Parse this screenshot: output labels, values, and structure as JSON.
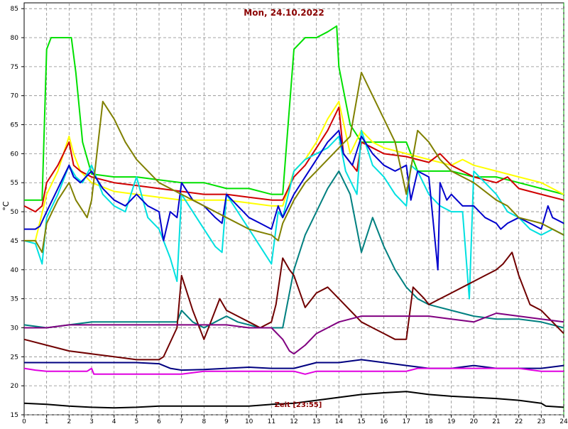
{
  "chart_data": {
    "type": "line",
    "title": "Mon, 24.10.2022",
    "xlabel": "Zeit [23:55]",
    "ylabel": "°C",
    "xlim": [
      0,
      24
    ],
    "ylim": [
      15,
      86
    ],
    "x_ticks": [
      0,
      1,
      2,
      3,
      4,
      5,
      6,
      7,
      8,
      9,
      10,
      11,
      12,
      13,
      14,
      15,
      16,
      17,
      18,
      19,
      20,
      21,
      22,
      23,
      24
    ],
    "y_ticks": [
      15,
      20,
      25,
      30,
      35,
      40,
      45,
      50,
      55,
      60,
      65,
      70,
      75,
      80,
      85
    ],
    "grid": true,
    "background": "#ffffff",
    "series": [
      {
        "color": "#00e000",
        "x": [
          0,
          0.5,
          0.8,
          1,
          1.2,
          1.7,
          2.1,
          2.3,
          2.6,
          3,
          4,
          5,
          6,
          7,
          8,
          9,
          10,
          11,
          11.5,
          12,
          12.5,
          13,
          13.5,
          13.9,
          14,
          14.5,
          15,
          16,
          17,
          17.5,
          18,
          19,
          20,
          21,
          22,
          23,
          24
        ],
        "y": [
          52,
          52,
          52,
          78,
          80,
          80,
          80,
          74,
          62,
          56.5,
          56,
          56,
          55.5,
          55,
          55,
          54,
          54,
          53,
          53,
          78,
          80,
          80,
          81,
          82,
          75,
          65,
          62,
          62,
          62,
          57,
          57,
          57,
          56,
          56,
          55,
          54,
          53
        ]
      },
      {
        "color": "#ffff00",
        "x": [
          0,
          0.5,
          1,
          1.5,
          2,
          2.2,
          2.5,
          3,
          4,
          5,
          6,
          7,
          8,
          9,
          10,
          11,
          11.5,
          12,
          12.5,
          13,
          13.5,
          14,
          14.5,
          15,
          15.5,
          16,
          17,
          18,
          19,
          19.5,
          20,
          21,
          22,
          23,
          24
        ],
        "y": [
          45,
          45,
          53,
          57,
          63,
          60,
          57,
          55,
          53.5,
          53,
          52.5,
          52,
          52,
          52,
          51.5,
          51,
          51,
          57,
          59,
          62,
          66,
          69,
          60,
          64,
          62,
          61,
          60,
          59,
          58,
          59,
          58,
          57,
          56,
          55,
          53
        ]
      },
      {
        "color": "#d00000",
        "x": [
          0,
          0.5,
          0.8,
          1,
          1.5,
          2,
          2.2,
          2.5,
          3,
          3.5,
          4,
          5,
          6,
          7,
          8,
          9,
          10,
          11,
          11.5,
          12,
          12.5,
          13,
          13.5,
          14,
          14.2,
          14.8,
          15,
          15.5,
          16,
          17,
          17.5,
          18,
          18.5,
          19,
          20,
          21,
          21.5,
          22,
          22.5,
          23,
          24
        ],
        "y": [
          51,
          50,
          51,
          55,
          58,
          62,
          58,
          57,
          56,
          55.5,
          55,
          54.5,
          54,
          53.5,
          53,
          53,
          52.5,
          52,
          52,
          56,
          58,
          61,
          64,
          68,
          60,
          57,
          62,
          61,
          60,
          59.5,
          59,
          58.5,
          60,
          58,
          56,
          55,
          56,
          54,
          53.5,
          53,
          52
        ]
      },
      {
        "color": "#00e0e0",
        "x": [
          0,
          0.5,
          0.8,
          1,
          1.5,
          2,
          2.3,
          2.6,
          3,
          3.5,
          4,
          4.5,
          5,
          5.5,
          6,
          6.5,
          6.8,
          7,
          7.5,
          8,
          8.5,
          8.8,
          9,
          9.5,
          10,
          10.5,
          11,
          11.3,
          11.5,
          12,
          12.5,
          13,
          13.5,
          14,
          14.3,
          14.8,
          15,
          15.5,
          16,
          16.5,
          17,
          17.2,
          17.5,
          18,
          18.5,
          19,
          19.5,
          19.8,
          20,
          20.5,
          21,
          21.5,
          22,
          22.5,
          23,
          23.5,
          24
        ],
        "y": [
          45,
          44.5,
          41,
          49,
          53,
          58,
          56,
          55,
          58,
          53,
          51,
          50,
          56,
          49,
          47,
          42,
          38,
          53,
          50,
          47,
          44,
          43,
          53,
          50,
          47,
          44,
          41,
          50,
          49,
          57,
          59,
          60,
          61,
          63,
          57,
          53,
          64,
          58,
          56,
          53,
          51,
          58,
          57,
          53,
          51,
          50,
          50,
          35,
          57,
          55,
          53,
          50,
          49,
          47,
          46,
          47,
          46
        ]
      },
      {
        "color": "#0000cc",
        "x": [
          0,
          0.5,
          0.7,
          1,
          1.5,
          2,
          2.2,
          2.5,
          3,
          3.5,
          4,
          4.5,
          5,
          5.5,
          6,
          6.2,
          6.5,
          6.8,
          7,
          7.5,
          8,
          8.5,
          8.8,
          9,
          9.5,
          10,
          10.5,
          11,
          11.3,
          11.5,
          12,
          12.5,
          13,
          13.5,
          14,
          14.2,
          14.6,
          15,
          15.5,
          16,
          16.5,
          17,
          17.2,
          17.5,
          18,
          18.4,
          18.5,
          18.8,
          19,
          19.5,
          20,
          20.5,
          21,
          21.2,
          21.5,
          22,
          22.5,
          23,
          23.3,
          23.5,
          24
        ],
        "y": [
          47,
          47,
          47.5,
          50,
          54,
          58,
          56,
          55,
          57,
          54,
          52,
          51,
          53,
          51,
          50,
          45,
          50,
          49,
          55,
          52,
          51,
          49,
          48,
          53,
          51,
          49,
          48,
          47,
          51,
          49,
          53,
          56,
          59,
          62,
          64,
          60,
          58,
          63,
          60,
          58,
          57,
          58,
          52,
          57,
          56,
          40,
          55,
          52,
          53,
          51,
          51,
          49,
          48,
          47,
          48,
          49,
          48,
          47,
          51,
          49,
          48
        ]
      },
      {
        "color": "#808000",
        "x": [
          0,
          0.5,
          0.8,
          1,
          1.5,
          2,
          2.3,
          2.8,
          3,
          3.5,
          4,
          4.5,
          5,
          6,
          7,
          8,
          9,
          10,
          11,
          11.3,
          11.5,
          12,
          12.5,
          13,
          13.5,
          14,
          14.5,
          15,
          15.5,
          16,
          16.5,
          17,
          17.5,
          18,
          18.5,
          19,
          20,
          21,
          21.5,
          22,
          23,
          24
        ],
        "y": [
          45,
          45,
          43,
          48,
          52,
          55,
          52,
          49,
          52,
          69,
          66,
          62,
          59,
          55,
          53,
          51,
          49,
          47,
          46,
          45,
          48,
          52,
          55,
          57,
          59,
          61,
          63,
          74,
          70,
          66,
          62,
          53,
          64,
          62,
          59,
          57,
          55,
          52,
          51,
          49,
          48,
          46
        ]
      },
      {
        "color": "#008080",
        "x": [
          0,
          1,
          2,
          3,
          4,
          5,
          6,
          6.5,
          6.8,
          7,
          7.5,
          8,
          8.5,
          9,
          9.5,
          10,
          10.5,
          11,
          11.5,
          12,
          12.5,
          13,
          13.5,
          14,
          14.5,
          15,
          15.5,
          16,
          16.5,
          17,
          17.5,
          18,
          19,
          20,
          21,
          22,
          23,
          24
        ],
        "y": [
          30.5,
          30,
          30.5,
          31,
          31,
          31,
          31,
          31,
          31,
          33,
          31,
          30,
          31,
          32,
          31,
          30.5,
          30,
          30,
          30,
          40,
          46,
          50,
          54,
          57,
          53,
          43,
          49,
          44,
          40,
          37,
          35,
          34,
          33,
          32,
          31.5,
          31.5,
          31,
          30
        ]
      },
      {
        "color": "#700000",
        "x": [
          0,
          1,
          2,
          3,
          4,
          5,
          6,
          6.2,
          6.8,
          7,
          7.5,
          8,
          8.2,
          8.7,
          9,
          9.5,
          10,
          10.5,
          11,
          11.2,
          11.5,
          11.8,
          12,
          12.5,
          13,
          13.5,
          14,
          14.5,
          15,
          15.5,
          16,
          16.5,
          17,
          17.3,
          17.8,
          18,
          18.5,
          19,
          19.5,
          20,
          20.5,
          21,
          21.3,
          21.7,
          22,
          22.5,
          23,
          23.5,
          24
        ],
        "y": [
          28,
          27,
          26,
          25.5,
          25,
          24.5,
          24.5,
          25,
          30,
          39,
          33,
          28,
          30,
          35,
          33,
          32,
          31,
          30,
          31,
          34,
          42,
          40,
          39,
          33.5,
          36,
          37,
          35,
          33,
          31,
          30,
          29,
          28,
          28,
          37,
          35,
          34,
          35,
          36,
          37,
          38,
          39,
          40,
          41,
          43,
          39,
          34,
          33,
          31,
          29
        ]
      },
      {
        "color": "#800080",
        "x": [
          0,
          1,
          2,
          3,
          4,
          5,
          6,
          7,
          8,
          9,
          10,
          11,
          11.5,
          11.8,
          12,
          12.5,
          13,
          13.5,
          14,
          14.5,
          15,
          16,
          17,
          18,
          19,
          20,
          21,
          22,
          23,
          24
        ],
        "y": [
          30,
          30,
          30.5,
          30.5,
          30.5,
          30.5,
          30.5,
          30.5,
          30.5,
          30.5,
          30,
          30,
          28,
          26,
          25.5,
          27,
          29,
          30,
          31,
          31.5,
          32,
          32,
          32,
          32,
          31.5,
          31,
          32.5,
          32,
          31.5,
          31
        ]
      },
      {
        "color": "#000080",
        "x": [
          0,
          1,
          2,
          3,
          4,
          5,
          6,
          6.5,
          7,
          8,
          9,
          10,
          11,
          12,
          13,
          14,
          15,
          16,
          17,
          18,
          19,
          20,
          21,
          22,
          23,
          24
        ],
        "y": [
          24,
          24,
          24,
          24,
          24,
          24,
          23.8,
          23,
          22.7,
          22.8,
          23,
          23.2,
          23,
          23,
          24,
          24,
          24.5,
          24,
          23.5,
          23,
          23,
          23.5,
          23,
          23,
          23,
          23.5
        ]
      },
      {
        "color": "#e000e0",
        "x": [
          0,
          0.5,
          1,
          2,
          2.8,
          3,
          3.1,
          4,
          5,
          6,
          7,
          8,
          9,
          10,
          11,
          12,
          12.5,
          13,
          13.5,
          14,
          15,
          16,
          17,
          17.5,
          18,
          19,
          20,
          21,
          22,
          23,
          24
        ],
        "y": [
          23,
          22.7,
          22.5,
          22.5,
          22.5,
          23,
          22,
          22,
          22,
          22,
          22,
          22.5,
          22.5,
          22.5,
          22.5,
          22.5,
          22,
          22.5,
          22.5,
          22.5,
          22.5,
          22.5,
          22.5,
          23,
          23,
          23,
          23,
          23,
          23,
          22.5,
          22.5
        ]
      },
      {
        "color": "#000000",
        "x": [
          0,
          1,
          2,
          3,
          4,
          5,
          6,
          7,
          8,
          9,
          10,
          11,
          12,
          13,
          14,
          15,
          16,
          17,
          18,
          19,
          20,
          21,
          22,
          23,
          23.2,
          24
        ],
        "y": [
          17,
          16.8,
          16.5,
          16.3,
          16.2,
          16.3,
          16.5,
          16.5,
          16.5,
          16.5,
          16.5,
          16.8,
          17,
          17.5,
          18,
          18.5,
          18.8,
          19,
          18.5,
          18.2,
          18,
          17.8,
          17.5,
          17,
          16.5,
          16.3
        ]
      }
    ]
  }
}
